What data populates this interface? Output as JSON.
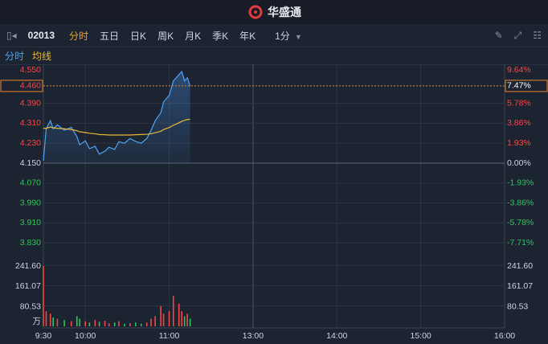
{
  "header": {
    "logo_text": "华盛通"
  },
  "toolbar": {
    "code": "02013",
    "tabs": [
      "分时",
      "五日",
      "日K",
      "周K",
      "月K",
      "季K",
      "年K"
    ],
    "interval": "1分"
  },
  "chart_data": [
    {
      "type": "line",
      "x": [
        0,
        2,
        5,
        7,
        10,
        15,
        20,
        24,
        26,
        30,
        33,
        37,
        40,
        44,
        47,
        51,
        54,
        58,
        62,
        66,
        70,
        74,
        77,
        80,
        84,
        86,
        90,
        93,
        97,
        99,
        101,
        103,
        105
      ],
      "xlim": [
        0,
        330
      ],
      "xticks": [
        {
          "value": 0,
          "label": "9:30"
        },
        {
          "value": 30,
          "label": "10:00"
        },
        {
          "value": 90,
          "label": "11:00"
        },
        {
          "value": 150,
          "label": "13:00"
        },
        {
          "value": 210,
          "label": "14:00"
        },
        {
          "value": 270,
          "label": "15:00"
        },
        {
          "value": 330,
          "label": "16:00"
        }
      ],
      "ylim": [
        3.75,
        4.55
      ],
      "yticks": [
        {
          "value": 4.55,
          "label": "4.550"
        },
        {
          "value": 4.39,
          "label": "4.390"
        },
        {
          "value": 4.31,
          "label": "4.310"
        },
        {
          "value": 4.23,
          "label": "4.230"
        },
        {
          "value": 4.15,
          "label": "4.150"
        },
        {
          "value": 4.07,
          "label": "4.070"
        },
        {
          "value": 3.99,
          "label": "3.990"
        },
        {
          "value": 3.91,
          "label": "3.910"
        },
        {
          "value": 3.83,
          "label": "3.830"
        }
      ],
      "y2lim": [
        -9.64,
        9.64
      ],
      "y2ticks": [
        {
          "value": 9.64,
          "label": "9.64%"
        },
        {
          "value": 5.78,
          "label": "5.78%"
        },
        {
          "value": 3.86,
          "label": "3.86%"
        },
        {
          "value": 1.93,
          "label": "1.93%"
        },
        {
          "value": 0,
          "label": "0.00%"
        },
        {
          "value": -1.93,
          "label": "-1.93%"
        },
        {
          "value": -3.86,
          "label": "-3.86%"
        },
        {
          "value": -5.78,
          "label": "-5.78%"
        },
        {
          "value": -7.71,
          "label": "-7.71%"
        }
      ],
      "series": [
        {
          "name": "分时",
          "color": "#4da3f5",
          "values": [
            4.16,
            4.288,
            4.32,
            4.288,
            4.304,
            4.282,
            4.294,
            4.256,
            4.224,
            4.24,
            4.208,
            4.218,
            4.186,
            4.198,
            4.214,
            4.205,
            4.236,
            4.23,
            4.249,
            4.237,
            4.23,
            4.249,
            4.281,
            4.32,
            4.352,
            4.396,
            4.422,
            4.48,
            4.505,
            4.518,
            4.48,
            4.493,
            4.46
          ]
        },
        {
          "name": "均线",
          "color": "#e8b83a",
          "values": [
            4.29,
            4.29,
            4.295,
            4.292,
            4.29,
            4.288,
            4.285,
            4.28,
            4.276,
            4.273,
            4.27,
            4.268,
            4.265,
            4.264,
            4.263,
            4.263,
            4.263,
            4.263,
            4.263,
            4.264,
            4.265,
            4.266,
            4.268,
            4.272,
            4.278,
            4.285,
            4.293,
            4.302,
            4.312,
            4.318,
            4.322,
            4.325,
            4.326
          ]
        }
      ],
      "current": {
        "value": 4.46,
        "label": "4.460",
        "pct": {
          "value": 7.47,
          "label": "7.47%"
        }
      },
      "up_color": "#f04848",
      "down_color": "#2fc25b",
      "grid": true
    },
    {
      "type": "bar",
      "x": [
        0,
        2,
        5,
        7,
        10,
        15,
        20,
        24,
        26,
        30,
        33,
        37,
        40,
        44,
        47,
        51,
        54,
        58,
        62,
        66,
        70,
        74,
        77,
        80,
        84,
        86,
        90,
        93,
        97,
        99,
        101,
        103,
        105
      ],
      "xlim": [
        0,
        330
      ],
      "values": [
        240,
        60,
        50,
        35,
        30,
        25,
        20,
        40,
        30,
        20,
        15,
        25,
        18,
        22,
        12,
        15,
        20,
        10,
        12,
        15,
        10,
        15,
        30,
        40,
        80,
        50,
        60,
        120,
        90,
        60,
        40,
        50,
        30
      ],
      "ylim": [
        0,
        241.6
      ],
      "yticks": [
        {
          "value": 241.6,
          "label": "241.60"
        },
        161.07,
        80.53
      ],
      "unit": "万",
      "up_color": "#f04848",
      "down_color": "#2fc25b"
    }
  ]
}
